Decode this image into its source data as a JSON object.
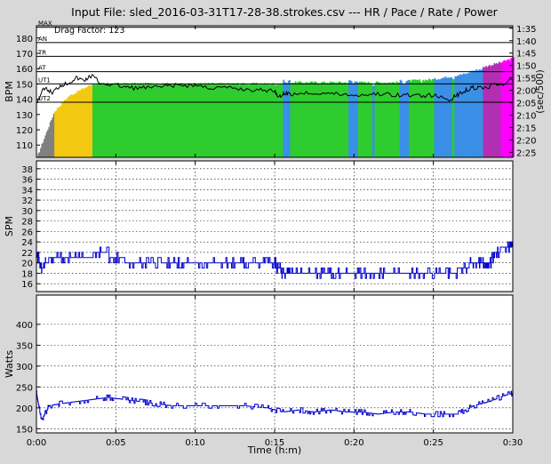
{
  "title": "Input File:  sled_2016-03-31T17-28-38.strokes.csv --- HR / Pace / Rate / Power",
  "colors": {
    "ut2": "#808080",
    "ut1": "#f2c811",
    "at": "#2ecc2e",
    "tr": "#3b8fe6",
    "an": "#b22eb2",
    "max": "#ff00ff",
    "line_rate": "#0000cc",
    "line_power": "#0000cc",
    "line_pace": "#000000"
  },
  "chart_data": [
    {
      "type": "bar",
      "name": "hr-panel",
      "ylabel": "BPM",
      "y2label": "(sec/500)",
      "annotation": "Drag Factor: 123",
      "ylim": [
        102,
        188
      ],
      "yticks": [
        110,
        120,
        130,
        140,
        150,
        160,
        170,
        180
      ],
      "y2ticks": [
        "2:25",
        "2:20",
        "2:15",
        "2:10",
        "2:05",
        "2:00",
        "1:55",
        "1:50",
        "1:45",
        "1:40",
        "1:35"
      ],
      "zone_lines": [
        {
          "label": "MAX",
          "value": 187
        },
        {
          "label": "AN",
          "value": 177
        },
        {
          "label": "TR",
          "value": 168
        },
        {
          "label": "AT",
          "value": 158
        },
        {
          "label": "UT1",
          "value": 150
        },
        {
          "label": "UT2",
          "value": 138
        }
      ],
      "hr_segments": [
        {
          "x0": 0.0,
          "x1": 1.1,
          "y0": 102,
          "y1": 132,
          "zone": "ut2"
        },
        {
          "x0": 1.1,
          "x1": 2.0,
          "y0": 132,
          "y1": 142,
          "zone": "ut1"
        },
        {
          "x0": 2.0,
          "x1": 3.5,
          "y0": 142,
          "y1": 150,
          "zone": "ut1"
        },
        {
          "x0": 3.5,
          "x1": 15.5,
          "y0": 150,
          "y1": 150,
          "zone": "at"
        },
        {
          "x0": 15.5,
          "x1": 15.9,
          "y0": 152,
          "y1": 152,
          "zone": "tr"
        },
        {
          "x0": 15.9,
          "x1": 19.6,
          "y0": 151,
          "y1": 151,
          "zone": "at"
        },
        {
          "x0": 19.6,
          "x1": 20.2,
          "y0": 152,
          "y1": 152,
          "zone": "tr"
        },
        {
          "x0": 20.2,
          "x1": 22.8,
          "y0": 151,
          "y1": 151,
          "zone": "at"
        },
        {
          "x0": 22.8,
          "x1": 23.4,
          "y0": 152,
          "y1": 152,
          "zone": "tr"
        },
        {
          "x0": 23.4,
          "x1": 25.0,
          "y0": 152,
          "y1": 153,
          "zone": "at"
        },
        {
          "x0": 25.0,
          "x1": 27.2,
          "y0": 153,
          "y1": 157,
          "zone": "tr"
        },
        {
          "x0": 27.2,
          "x1": 28.1,
          "y0": 158,
          "y1": 160,
          "zone": "tr"
        },
        {
          "x0": 28.1,
          "x1": 29.2,
          "y0": 161,
          "y1": 164,
          "zone": "an"
        },
        {
          "x0": 29.2,
          "x1": 30.0,
          "y0": 164,
          "y1": 167,
          "zone": "max"
        }
      ],
      "hr_dips": [
        {
          "x": 15.7,
          "zone": "tr"
        },
        {
          "x": 19.9,
          "zone": "tr"
        },
        {
          "x": 21.2,
          "zone": "tr"
        },
        {
          "x": 23.1,
          "zone": "tr"
        },
        {
          "x": 24.2,
          "zone": "at"
        },
        {
          "x": 26.2,
          "zone": "at"
        }
      ],
      "pace_line": {
        "x": [
          0,
          0.5,
          1.0,
          1.5,
          2.0,
          2.5,
          3.0,
          3.5,
          4.0,
          5.0,
          6.0,
          7.0,
          8.0,
          9.0,
          10.0,
          11.0,
          12.0,
          13.0,
          14.0,
          15.0,
          15.3,
          15.6,
          16.0,
          17.0,
          18.0,
          19.0,
          20.0,
          21.0,
          22.0,
          23.0,
          24.0,
          25.0,
          26.0,
          26.5,
          27.0,
          27.5,
          28.0,
          29.0,
          30.0
        ],
        "y_sec": [
          125,
          119,
          121,
          118,
          117,
          115,
          116,
          114,
          117,
          118,
          119,
          119,
          118.5,
          118,
          118,
          119,
          119,
          119.5,
          120,
          120,
          123,
          121,
          121.5,
          121,
          121,
          121.5,
          122,
          121.5,
          121.5,
          122,
          122,
          122,
          124,
          122,
          120,
          119,
          119,
          118,
          116
        ]
      },
      "xlim": [
        0,
        30
      ]
    },
    {
      "type": "line",
      "name": "rate-panel",
      "ylabel": "SPM",
      "ylim": [
        14.5,
        39.5
      ],
      "yticks": [
        16,
        18,
        20,
        22,
        24,
        26,
        28,
        30,
        32,
        34,
        36,
        38
      ],
      "series": [
        {
          "x": [
            0,
            0.3,
            0.6,
            1.0,
            2.0,
            3.0,
            4.0,
            5.0,
            6.0,
            7.0,
            8.0,
            9.0,
            10.0,
            11.0,
            12.0,
            13.0,
            14.0,
            15.0,
            15.2,
            15.5,
            16.0,
            17.0,
            18.0,
            19.0,
            20.0,
            21.0,
            22.0,
            23.0,
            24.0,
            25.0,
            26.0,
            27.0,
            27.5,
            28.0,
            28.5,
            29.0,
            29.5,
            30.0
          ],
          "y": [
            22,
            19,
            20,
            21,
            21,
            21,
            22,
            21,
            20,
            20,
            20,
            20,
            20,
            20,
            20,
            20,
            20,
            20,
            19,
            18,
            18,
            18,
            18,
            18,
            18,
            18,
            18,
            18,
            18,
            18,
            18,
            19,
            20,
            20,
            20,
            22,
            23,
            23
          ]
        }
      ],
      "xlim": [
        0,
        30
      ]
    },
    {
      "type": "line",
      "name": "power-panel",
      "ylabel": "Watts",
      "xlabel": "Time (h:m)",
      "ylim": [
        140,
        470
      ],
      "yticks": [
        150,
        200,
        250,
        300,
        350,
        400
      ],
      "xticks": [
        "0:00",
        "0:05",
        "0:10",
        "0:15",
        "0:20",
        "0:25",
        "0:30"
      ],
      "series": [
        {
          "x": [
            0,
            0.3,
            0.8,
            1.5,
            2.5,
            3.5,
            4.5,
            5.5,
            6.5,
            7.5,
            8.5,
            10.0,
            11.5,
            13.0,
            14.5,
            15.5,
            16.5,
            17.5,
            18.5,
            19.5,
            20.5,
            21.5,
            22.5,
            23.5,
            24.5,
            25.5,
            26.5,
            27.5,
            28.5,
            29.5,
            30.0
          ],
          "y": [
            235,
            170,
            205,
            210,
            215,
            220,
            225,
            220,
            215,
            210,
            205,
            205,
            205,
            205,
            200,
            190,
            195,
            190,
            195,
            190,
            190,
            185,
            190,
            190,
            185,
            185,
            185,
            205,
            215,
            230,
            235
          ]
        }
      ],
      "xlim": [
        0,
        30
      ]
    }
  ]
}
